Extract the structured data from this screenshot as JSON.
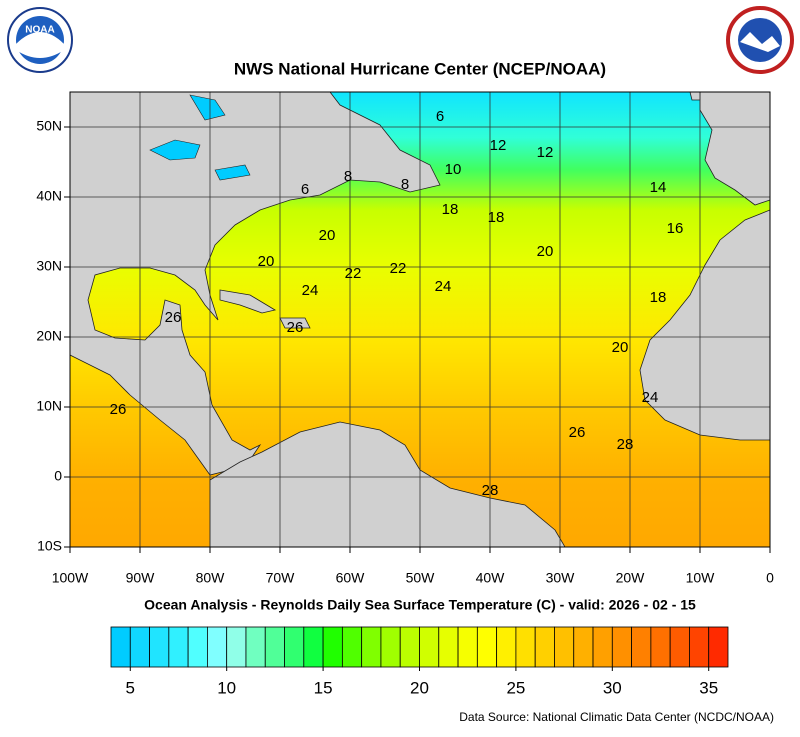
{
  "title": "NWS National Hurricane Center (NCEP/NOAA)",
  "logo_text": "NOAA",
  "map": {
    "lon_range": [
      -100,
      0
    ],
    "lat_range": [
      -10,
      55
    ],
    "lat_ticks": [
      {
        "value": 50,
        "label": "50N"
      },
      {
        "value": 40,
        "label": "40N"
      },
      {
        "value": 30,
        "label": "30N"
      },
      {
        "value": 20,
        "label": "20N"
      },
      {
        "value": 10,
        "label": "10N"
      },
      0,
      {
        "value": -10,
        "label": "10S"
      }
    ],
    "lon_ticks": [
      {
        "value": -100,
        "label": "100W"
      },
      {
        "value": -90,
        "label": "90W"
      },
      {
        "value": -80,
        "label": "80W"
      },
      {
        "value": -70,
        "label": "70W"
      },
      {
        "value": -60,
        "label": "60W"
      },
      {
        "value": -50,
        "label": "50W"
      },
      {
        "value": -40,
        "label": "40W"
      },
      {
        "value": -30,
        "label": "30W"
      },
      {
        "value": -20,
        "label": "20W"
      },
      {
        "value": -10,
        "label": "10W"
      },
      0
    ],
    "contour_labels": [
      6,
      12,
      12,
      10,
      8,
      8,
      6,
      14,
      18,
      18,
      16,
      20,
      20,
      20,
      22,
      22,
      24,
      24,
      18,
      26,
      26,
      20,
      26,
      24,
      26,
      28,
      28
    ]
  },
  "subtitle": "Ocean Analysis - Reynolds Daily Sea Surface Temperature (C) - valid: 2026 - 02 - 15",
  "colorbar": {
    "range": [
      4,
      36
    ],
    "ticks": [
      5,
      10,
      15,
      20,
      25,
      30,
      35
    ],
    "colors": [
      "#00ccff",
      "#10d8ff",
      "#20e4ff",
      "#30f0ff",
      "#50ffff",
      "#80ffff",
      "#90ffe8",
      "#70ffc0",
      "#50ff98",
      "#30ff70",
      "#10ff40",
      "#20ff00",
      "#50ff00",
      "#80ff00",
      "#a0ff00",
      "#bbff00",
      "#d0ff00",
      "#e6ff00",
      "#f6ff00",
      "#ffff00",
      "#fff000",
      "#ffe000",
      "#ffd000",
      "#ffc000",
      "#ffb000",
      "#ffa000",
      "#ff9000",
      "#ff8000",
      "#ff7000",
      "#ff5c00",
      "#ff4400",
      "#ff2a00"
    ]
  },
  "source": "Data Source: National Climatic Data Center (NCDC/NOAA)"
}
